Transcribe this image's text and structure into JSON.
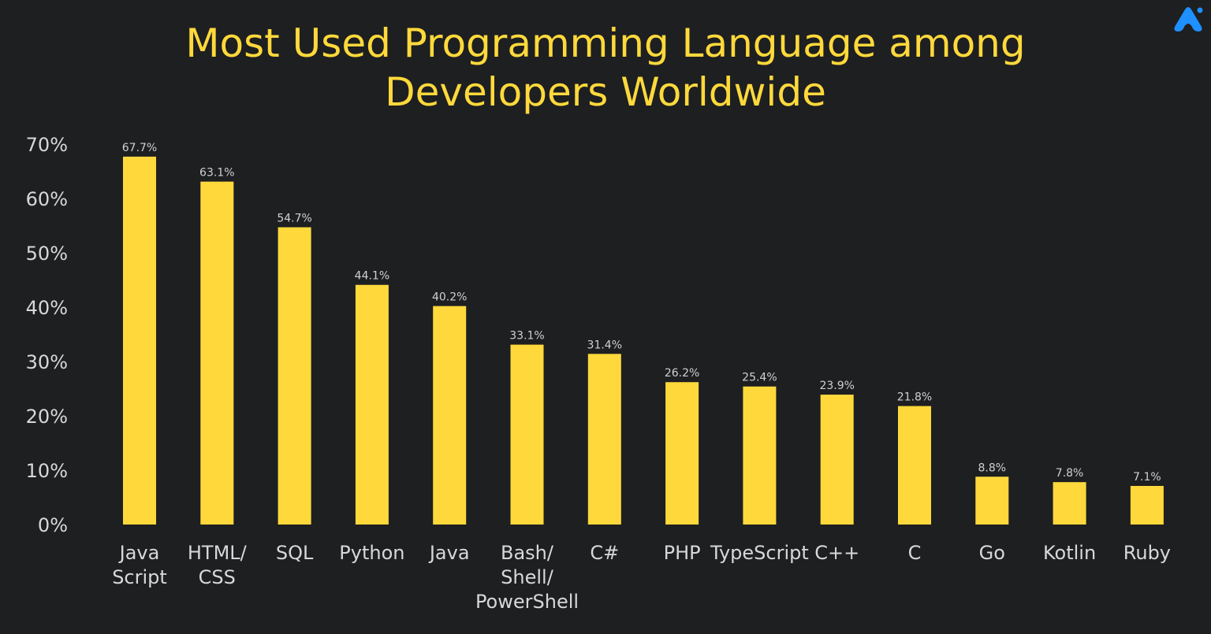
{
  "chart_data": {
    "type": "bar",
    "title": "Most Used Programming Language among Developers  Worldwide",
    "title_lines": [
      "Most Used Programming Language among",
      "Developers  Worldwide"
    ],
    "categories": [
      "Java Script",
      "HTML/ CSS",
      "SQL",
      "Python",
      "Java",
      "Bash/ Shell/ PowerShell",
      "C#",
      "PHP",
      "TypeScript",
      "C++",
      "C",
      "Go",
      "Kotlin",
      "Ruby"
    ],
    "category_lines": [
      [
        "Java",
        "Script"
      ],
      [
        "HTML/",
        "CSS"
      ],
      [
        "SQL"
      ],
      [
        "Python"
      ],
      [
        "Java"
      ],
      [
        "Bash/",
        "Shell/",
        "PowerShell"
      ],
      [
        "C#"
      ],
      [
        "PHP"
      ],
      [
        "TypeScript"
      ],
      [
        "C++"
      ],
      [
        "C"
      ],
      [
        "Go"
      ],
      [
        "Kotlin"
      ],
      [
        "Ruby"
      ]
    ],
    "values": [
      67.7,
      63.1,
      54.7,
      44.1,
      40.2,
      33.1,
      31.4,
      26.2,
      25.4,
      23.9,
      21.8,
      8.8,
      7.8,
      7.1
    ],
    "data_labels": [
      "67.7%",
      "63.1%",
      "54.7%",
      "44.1%",
      "40.2%",
      "33.1%",
      "31.4%",
      "26.2%",
      "25.4%",
      "23.9%",
      "21.8%",
      "8.8%",
      "7.8%",
      "7.1%"
    ],
    "xlabel": "",
    "ylabel": "",
    "ylim": [
      0,
      70
    ],
    "yticks": [
      "0%",
      "10%",
      "20%",
      "30%",
      "40%",
      "50%",
      "60%",
      "70%"
    ],
    "grid": false,
    "legend": "none",
    "colors": {
      "bar": "#ffd93b",
      "background": "#1e1f21",
      "title": "#ffd93b",
      "logo": "#1e90ff"
    }
  },
  "logo": {
    "icon": "brand-logo-icon"
  }
}
